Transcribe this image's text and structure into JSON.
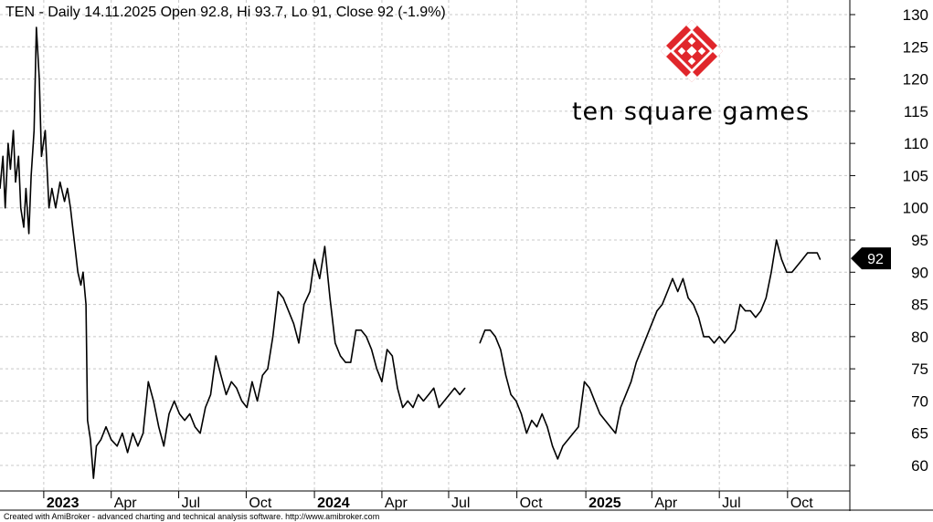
{
  "header": {
    "title": "TEN - Daily 14.11.2025 Open 92.8, Hi 93.7, Lo 91, Close 92 (-1.9%)"
  },
  "logo": {
    "text": "ten square games",
    "colors": {
      "red": "#e0262b",
      "black": "#000000"
    }
  },
  "footer": {
    "credit": "Created with AmiBroker - advanced charting and technical analysis software. http://www.amibroker.com"
  },
  "last_price": {
    "label": "92",
    "value": 92
  },
  "colors": {
    "line": "#000000",
    "grid": "#c8c8c8",
    "badge": "#000000",
    "background": "#ffffff"
  },
  "chart_data": {
    "type": "line",
    "ticker": "TEN",
    "ylim": [
      56,
      132
    ],
    "y_ticks": [
      60,
      65,
      70,
      75,
      80,
      85,
      90,
      95,
      100,
      105,
      110,
      115,
      120,
      125,
      130
    ],
    "xlim": [
      "2022-11-04",
      "2025-12-24"
    ],
    "x_ticks": [
      {
        "date": "2023-01-02",
        "label": "2023",
        "bold": true
      },
      {
        "date": "2023-04-03",
        "label": "Apr",
        "bold": false
      },
      {
        "date": "2023-07-03",
        "label": "Jul",
        "bold": false
      },
      {
        "date": "2023-10-02",
        "label": "Oct",
        "bold": false
      },
      {
        "date": "2024-01-02",
        "label": "2024",
        "bold": true
      },
      {
        "date": "2024-04-02",
        "label": "Apr",
        "bold": false
      },
      {
        "date": "2024-07-01",
        "label": "Jul",
        "bold": false
      },
      {
        "date": "2024-10-01",
        "label": "Oct",
        "bold": false
      },
      {
        "date": "2025-01-02",
        "label": "2025",
        "bold": true
      },
      {
        "date": "2025-04-01",
        "label": "Apr",
        "bold": false
      },
      {
        "date": "2025-07-01",
        "label": "Jul",
        "bold": false
      },
      {
        "date": "2025-10-01",
        "label": "Oct",
        "bold": false
      }
    ],
    "grid": true,
    "series": [
      {
        "points": [
          [
            "2022-11-04",
            103
          ],
          [
            "2022-11-08",
            108
          ],
          [
            "2022-11-11",
            100
          ],
          [
            "2022-11-15",
            110
          ],
          [
            "2022-11-18",
            106
          ],
          [
            "2022-11-22",
            112
          ],
          [
            "2022-11-25",
            104
          ],
          [
            "2022-11-29",
            108
          ],
          [
            "2022-12-02",
            100
          ],
          [
            "2022-12-06",
            97
          ],
          [
            "2022-12-09",
            103
          ],
          [
            "2022-12-13",
            96
          ],
          [
            "2022-12-16",
            105
          ],
          [
            "2022-12-20",
            112
          ],
          [
            "2022-12-23",
            128
          ],
          [
            "2022-12-27",
            120
          ],
          [
            "2022-12-30",
            108
          ],
          [
            "2023-01-04",
            112
          ],
          [
            "2023-01-09",
            100
          ],
          [
            "2023-01-13",
            103
          ],
          [
            "2023-01-18",
            100
          ],
          [
            "2023-01-24",
            104
          ],
          [
            "2023-01-30",
            101
          ],
          [
            "2023-02-03",
            103
          ],
          [
            "2023-02-07",
            100
          ],
          [
            "2023-02-10",
            97
          ],
          [
            "2023-02-14",
            93
          ],
          [
            "2023-02-17",
            90
          ],
          [
            "2023-02-21",
            88
          ],
          [
            "2023-02-24",
            90
          ],
          [
            "2023-02-28",
            85
          ],
          [
            "2023-03-02",
            67
          ],
          [
            "2023-03-06",
            64
          ],
          [
            "2023-03-10",
            58
          ],
          [
            "2023-03-14",
            63
          ],
          [
            "2023-03-20",
            64
          ],
          [
            "2023-03-27",
            66
          ],
          [
            "2023-04-03",
            64
          ],
          [
            "2023-04-11",
            63
          ],
          [
            "2023-04-18",
            65
          ],
          [
            "2023-04-25",
            62
          ],
          [
            "2023-05-02",
            65
          ],
          [
            "2023-05-09",
            63
          ],
          [
            "2023-05-16",
            65
          ],
          [
            "2023-05-23",
            73
          ],
          [
            "2023-05-30",
            70
          ],
          [
            "2023-06-06",
            66
          ],
          [
            "2023-06-13",
            63
          ],
          [
            "2023-06-20",
            68
          ],
          [
            "2023-06-27",
            70
          ],
          [
            "2023-07-04",
            68
          ],
          [
            "2023-07-11",
            67
          ],
          [
            "2023-07-18",
            68
          ],
          [
            "2023-07-25",
            66
          ],
          [
            "2023-08-01",
            65
          ],
          [
            "2023-08-08",
            69
          ],
          [
            "2023-08-15",
            71
          ],
          [
            "2023-08-22",
            77
          ],
          [
            "2023-08-29",
            74
          ],
          [
            "2023-09-05",
            71
          ],
          [
            "2023-09-12",
            73
          ],
          [
            "2023-09-19",
            72
          ],
          [
            "2023-09-26",
            70
          ],
          [
            "2023-10-03",
            69
          ],
          [
            "2023-10-10",
            73
          ],
          [
            "2023-10-17",
            70
          ],
          [
            "2023-10-24",
            74
          ],
          [
            "2023-10-31",
            75
          ],
          [
            "2023-11-07",
            80
          ],
          [
            "2023-11-14",
            87
          ],
          [
            "2023-11-21",
            86
          ],
          [
            "2023-11-28",
            84
          ],
          [
            "2023-12-05",
            82
          ],
          [
            "2023-12-12",
            79
          ],
          [
            "2023-12-19",
            85
          ],
          [
            "2023-12-27",
            87
          ],
          [
            "2024-01-02",
            92
          ],
          [
            "2024-01-09",
            89
          ],
          [
            "2024-01-16",
            94
          ],
          [
            "2024-01-23",
            86
          ],
          [
            "2024-01-30",
            79
          ],
          [
            "2024-02-06",
            77
          ],
          [
            "2024-02-13",
            76
          ],
          [
            "2024-02-20",
            76
          ],
          [
            "2024-02-27",
            81
          ],
          [
            "2024-03-05",
            81
          ],
          [
            "2024-03-12",
            80
          ],
          [
            "2024-03-19",
            78
          ],
          [
            "2024-03-26",
            75
          ],
          [
            "2024-04-02",
            73
          ],
          [
            "2024-04-09",
            78
          ],
          [
            "2024-04-16",
            77
          ],
          [
            "2024-04-23",
            72
          ],
          [
            "2024-04-30",
            69
          ],
          [
            "2024-05-07",
            70
          ],
          [
            "2024-05-14",
            69
          ],
          [
            "2024-05-21",
            71
          ],
          [
            "2024-05-28",
            70
          ],
          [
            "2024-06-04",
            71
          ],
          [
            "2024-06-11",
            72
          ],
          [
            "2024-06-18",
            69
          ],
          [
            "2024-06-25",
            70
          ],
          [
            "2024-07-02",
            71
          ],
          [
            "2024-07-09",
            72
          ],
          [
            "2024-07-16",
            71
          ],
          [
            "2024-07-23",
            72
          ],
          [
            "2024-08-12",
            79
          ],
          [
            "2024-08-19",
            81
          ],
          [
            "2024-08-26",
            81
          ],
          [
            "2024-09-02",
            80
          ],
          [
            "2024-09-09",
            78
          ],
          [
            "2024-09-16",
            74
          ],
          [
            "2024-09-23",
            71
          ],
          [
            "2024-09-30",
            70
          ],
          [
            "2024-10-07",
            68
          ],
          [
            "2024-10-14",
            65
          ],
          [
            "2024-10-21",
            67
          ],
          [
            "2024-10-28",
            66
          ],
          [
            "2024-11-04",
            68
          ],
          [
            "2024-11-11",
            66
          ],
          [
            "2024-11-18",
            63
          ],
          [
            "2024-11-25",
            61
          ],
          [
            "2024-12-02",
            63
          ],
          [
            "2024-12-09",
            64
          ],
          [
            "2024-12-16",
            65
          ],
          [
            "2024-12-23",
            66
          ],
          [
            "2024-12-31",
            73
          ],
          [
            "2025-01-07",
            72
          ],
          [
            "2025-01-14",
            70
          ],
          [
            "2025-01-21",
            68
          ],
          [
            "2025-01-28",
            67
          ],
          [
            "2025-02-04",
            66
          ],
          [
            "2025-02-11",
            65
          ],
          [
            "2025-02-18",
            69
          ],
          [
            "2025-02-25",
            71
          ],
          [
            "2025-03-04",
            73
          ],
          [
            "2025-03-11",
            76
          ],
          [
            "2025-03-18",
            78
          ],
          [
            "2025-03-25",
            80
          ],
          [
            "2025-04-01",
            82
          ],
          [
            "2025-04-08",
            84
          ],
          [
            "2025-04-15",
            85
          ],
          [
            "2025-04-22",
            87
          ],
          [
            "2025-04-29",
            89
          ],
          [
            "2025-05-06",
            87
          ],
          [
            "2025-05-13",
            89
          ],
          [
            "2025-05-20",
            86
          ],
          [
            "2025-05-27",
            85
          ],
          [
            "2025-06-03",
            83
          ],
          [
            "2025-06-10",
            80
          ],
          [
            "2025-06-17",
            80
          ],
          [
            "2025-06-24",
            79
          ],
          [
            "2025-07-01",
            80
          ],
          [
            "2025-07-08",
            79
          ],
          [
            "2025-07-15",
            80
          ],
          [
            "2025-07-22",
            81
          ],
          [
            "2025-07-29",
            85
          ],
          [
            "2025-08-05",
            84
          ],
          [
            "2025-08-12",
            84
          ],
          [
            "2025-08-19",
            83
          ],
          [
            "2025-08-26",
            84
          ],
          [
            "2025-09-02",
            86
          ],
          [
            "2025-09-09",
            90
          ],
          [
            "2025-09-16",
            95
          ],
          [
            "2025-09-23",
            92
          ],
          [
            "2025-09-30",
            90
          ],
          [
            "2025-10-07",
            90
          ],
          [
            "2025-10-14",
            91
          ],
          [
            "2025-10-21",
            92
          ],
          [
            "2025-10-28",
            93
          ],
          [
            "2025-11-04",
            93
          ],
          [
            "2025-11-10",
            93
          ],
          [
            "2025-11-14",
            92
          ]
        ]
      }
    ]
  }
}
